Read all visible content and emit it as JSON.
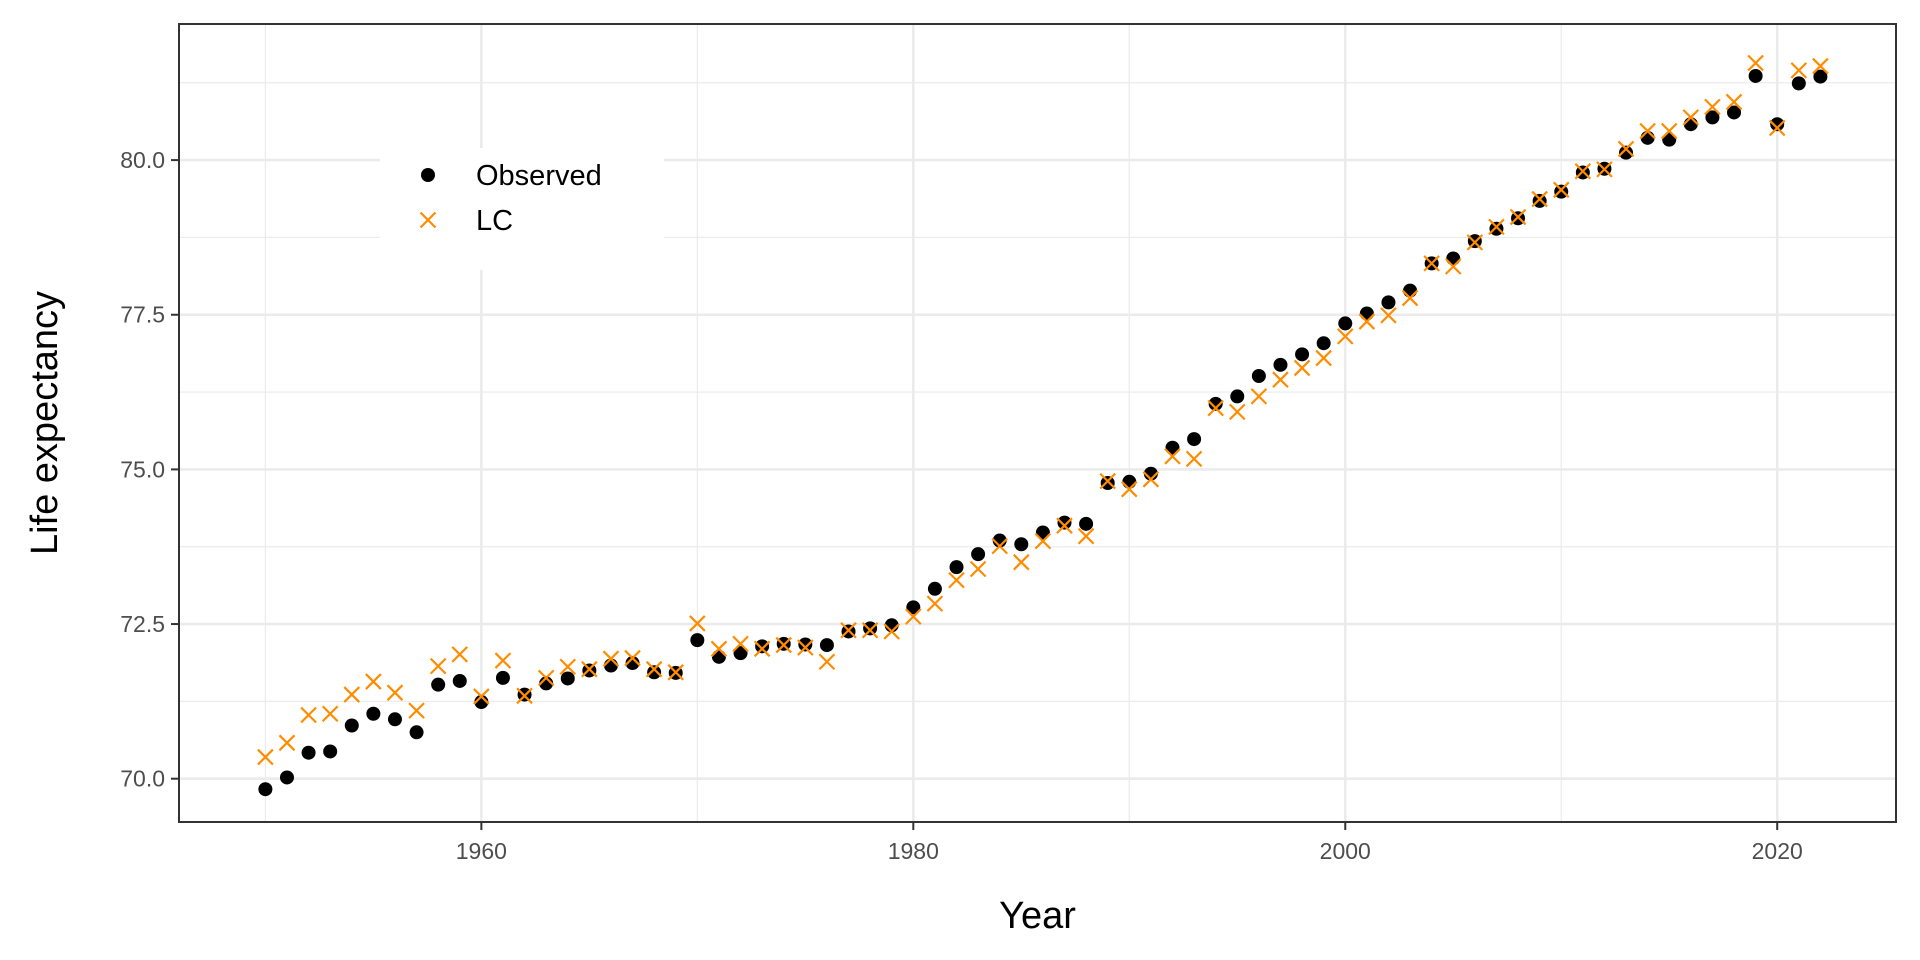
{
  "chart_data": {
    "type": "scatter",
    "xlabel": "Year",
    "ylabel": "Life expectancy",
    "xlim": [
      1946,
      2025.5
    ],
    "ylim": [
      69.3,
      82.2
    ],
    "x_ticks": [
      1960,
      1980,
      2000,
      2020
    ],
    "x_tick_labels": [
      "1960",
      "1980",
      "2000",
      "2020"
    ],
    "y_ticks": [
      70.0,
      72.5,
      75.0,
      77.5,
      80.0
    ],
    "y_tick_labels": [
      "70.0",
      "72.5",
      "75.0",
      "77.5",
      "80.0"
    ],
    "x_minor_ticks": [
      1950,
      1970,
      1990,
      2010
    ],
    "y_minor_ticks": [
      71.25,
      73.75,
      76.25,
      78.75,
      81.25
    ],
    "grid": true,
    "legend_position": "top-left",
    "legend": [
      {
        "label": "Observed",
        "marker": "dot",
        "color": "#000000"
      },
      {
        "label": "LC",
        "marker": "x",
        "color": "#ff8c00"
      }
    ],
    "years": [
      1950,
      1951,
      1952,
      1953,
      1954,
      1955,
      1956,
      1957,
      1958,
      1959,
      1960,
      1961,
      1962,
      1963,
      1964,
      1965,
      1966,
      1967,
      1968,
      1969,
      1970,
      1971,
      1972,
      1973,
      1974,
      1975,
      1976,
      1977,
      1978,
      1979,
      1980,
      1981,
      1982,
      1983,
      1984,
      1985,
      1986,
      1987,
      1988,
      1989,
      1990,
      1991,
      1992,
      1993,
      1994,
      1995,
      1996,
      1997,
      1998,
      1999,
      2000,
      2001,
      2002,
      2003,
      2004,
      2005,
      2006,
      2007,
      2008,
      2009,
      2010,
      2011,
      2012,
      2013,
      2014,
      2015,
      2016,
      2017,
      2018,
      2019,
      2020,
      2021,
      2022
    ],
    "series": [
      {
        "name": "Observed",
        "color": "#000000",
        "marker": "dot",
        "values": [
          69.83,
          70.02,
          70.42,
          70.44,
          70.86,
          71.05,
          70.96,
          70.75,
          71.52,
          71.58,
          71.24,
          71.63,
          71.36,
          71.54,
          71.62,
          71.75,
          71.83,
          71.87,
          71.72,
          71.71,
          72.24,
          71.97,
          72.03,
          72.14,
          72.18,
          72.17,
          72.16,
          72.38,
          72.43,
          72.48,
          72.77,
          73.07,
          73.42,
          73.63,
          73.85,
          73.79,
          73.98,
          74.14,
          74.12,
          74.78,
          74.8,
          74.93,
          75.35,
          75.49,
          76.06,
          76.18,
          76.51,
          76.69,
          76.86,
          77.04,
          77.36,
          77.52,
          77.7,
          77.89,
          78.33,
          78.41,
          78.69,
          78.89,
          79.06,
          79.34,
          79.49,
          79.8,
          79.86,
          80.12,
          80.36,
          80.33,
          80.58,
          80.69,
          80.77,
          81.36,
          80.58,
          81.24,
          81.35
        ]
      },
      {
        "name": "LC",
        "color": "#ff8c00",
        "marker": "x",
        "values": [
          70.35,
          70.58,
          71.03,
          71.05,
          71.36,
          71.57,
          71.39,
          71.1,
          71.82,
          72.01,
          71.33,
          71.91,
          71.34,
          71.63,
          71.81,
          71.77,
          71.94,
          71.95,
          71.77,
          71.72,
          72.51,
          72.1,
          72.18,
          72.1,
          72.16,
          72.12,
          71.89,
          72.4,
          72.4,
          72.38,
          72.62,
          72.83,
          73.21,
          73.39,
          73.76,
          73.5,
          73.84,
          74.09,
          73.92,
          74.81,
          74.68,
          74.84,
          75.21,
          75.17,
          75.99,
          75.93,
          76.18,
          76.45,
          76.64,
          76.8,
          77.15,
          77.39,
          77.49,
          77.77,
          78.33,
          78.28,
          78.67,
          78.92,
          79.08,
          79.37,
          79.52,
          79.82,
          79.85,
          80.18,
          80.47,
          80.47,
          80.69,
          80.86,
          80.94,
          81.57,
          80.52,
          81.45,
          81.52
        ]
      }
    ]
  }
}
